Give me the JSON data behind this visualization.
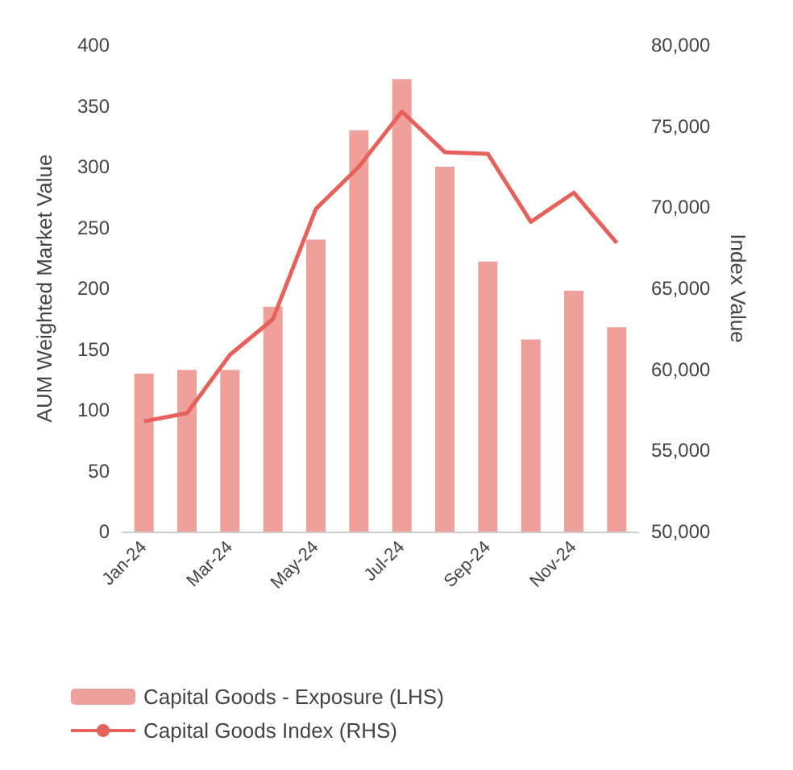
{
  "chart_data": {
    "type": "bar",
    "categories": [
      "Jan-24",
      null,
      "Mar-24",
      null,
      "May-24",
      null,
      "Jul-24",
      null,
      "Sep-24",
      null,
      "Nov-24",
      null
    ],
    "ylabel": "AUM Weighted Market Value",
    "y2label": "Index Value",
    "series": [
      {
        "name": "Capital Goods - Exposure (LHS)",
        "color": "#f0a09a",
        "values": [
          130,
          133,
          133,
          185,
          240,
          330,
          372,
          300,
          222,
          158,
          198,
          168
        ]
      },
      {
        "name": "Capital Goods Index (RHS)",
        "type": "line",
        "axis": "y2",
        "color": "#e8605a",
        "values": [
          56800,
          57300,
          60900,
          63100,
          69900,
          72500,
          75900,
          73400,
          73300,
          69100,
          70900,
          67800
        ]
      }
    ],
    "ylim": [
      0,
      400
    ],
    "yticks": [
      0,
      50,
      100,
      150,
      200,
      250,
      300,
      350,
      400
    ],
    "y2lim": [
      50000,
      80000
    ],
    "y2ticks": [
      {
        "value": 50000,
        "label": "50,000"
      },
      {
        "value": 55000,
        "label": "55,000"
      },
      {
        "value": 60000,
        "label": "60,000"
      },
      {
        "value": 65000,
        "label": "65,000"
      },
      {
        "value": 70000,
        "label": "70,000"
      },
      {
        "value": 75000,
        "label": "75,000"
      },
      {
        "value": 80000,
        "label": "80,000"
      }
    ],
    "grid": false,
    "legend": "bottom",
    "marker": "none"
  }
}
